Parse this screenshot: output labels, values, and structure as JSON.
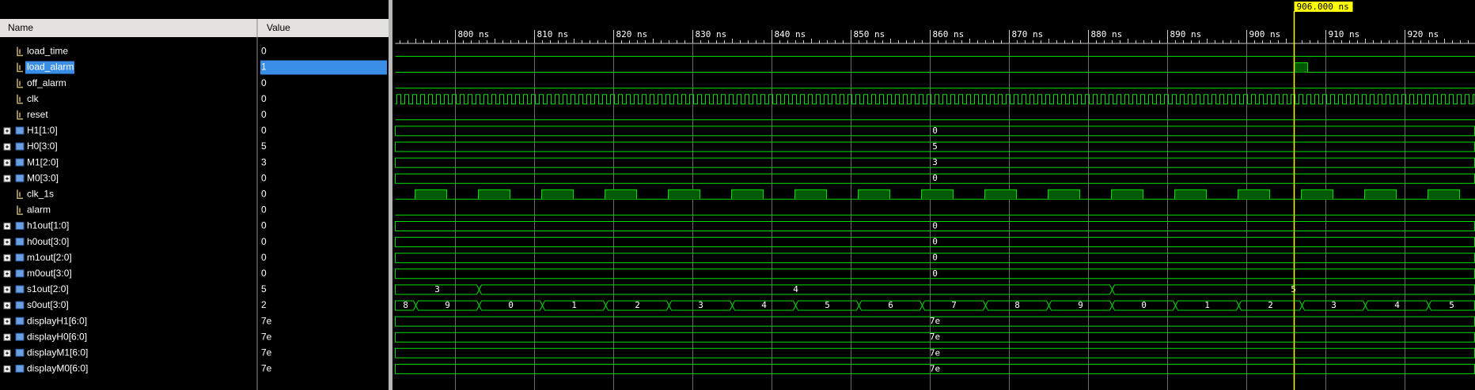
{
  "columns": {
    "name": "Name",
    "value": "Value"
  },
  "cursor": "906.000 ns",
  "ruler": [
    "800 ns",
    "810 ns",
    "820 ns",
    "830 ns",
    "840 ns",
    "850 ns",
    "860 ns",
    "870 ns",
    "880 ns",
    "890 ns",
    "900 ns",
    "910 ns",
    "920 ns"
  ],
  "signals": [
    {
      "name": "load_time",
      "value": "0"
    },
    {
      "name": "load_alarm",
      "value": "1"
    },
    {
      "name": "off_alarm",
      "value": "0"
    },
    {
      "name": "clk",
      "value": "0"
    },
    {
      "name": "reset",
      "value": "0"
    },
    {
      "name": "H1[1:0]",
      "value": "0",
      "wave": [
        "0"
      ]
    },
    {
      "name": "H0[3:0]",
      "value": "5",
      "wave": [
        "5"
      ]
    },
    {
      "name": "M1[2:0]",
      "value": "3",
      "wave": [
        "3"
      ]
    },
    {
      "name": "M0[3:0]",
      "value": "0",
      "wave": [
        "0"
      ]
    },
    {
      "name": "clk_1s",
      "value": "0"
    },
    {
      "name": "alarm",
      "value": "0"
    },
    {
      "name": "h1out[1:0]",
      "value": "0",
      "wave": [
        "0"
      ]
    },
    {
      "name": "h0out[3:0]",
      "value": "0",
      "wave": [
        "0"
      ]
    },
    {
      "name": "m1out[2:0]",
      "value": "0",
      "wave": [
        "0"
      ]
    },
    {
      "name": "m0out[3:0]",
      "value": "0",
      "wave": [
        "0"
      ]
    },
    {
      "name": "s1out[2:0]",
      "value": "5",
      "wave": [
        "3",
        "4",
        "5"
      ]
    },
    {
      "name": "s0out[3:0]",
      "value": "2",
      "wave": [
        "8",
        "9",
        "0",
        "1",
        "2",
        "3",
        "4",
        "5",
        "6",
        "7",
        "8",
        "9",
        "0",
        "1",
        "2",
        "3",
        "4",
        "5"
      ]
    },
    {
      "name": "displayH1[6:0]",
      "value": "7e",
      "wave": [
        "7e"
      ]
    },
    {
      "name": "displayH0[6:0]",
      "value": "7e",
      "wave": [
        "7e"
      ]
    },
    {
      "name": "displayM1[6:0]",
      "value": "7e",
      "wave": [
        "7e"
      ]
    },
    {
      "name": "displayM0[6:0]",
      "value": "7e",
      "wave": [
        "7e"
      ]
    }
  ]
}
